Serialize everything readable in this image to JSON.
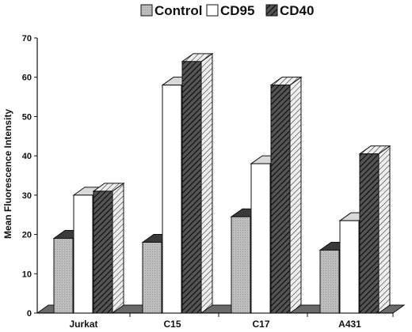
{
  "chart_data": {
    "type": "bar",
    "title": "",
    "xlabel": "",
    "ylabel": "Mean Fluorescence Intensity",
    "categories": [
      "Jurkat",
      "C15",
      "C17",
      "A431"
    ],
    "series": [
      {
        "name": "Control",
        "values": [
          19,
          18,
          24.5,
          16
        ],
        "color": "#b8b8b8"
      },
      {
        "name": "CD95",
        "values": [
          30,
          58,
          38,
          23.5
        ],
        "color": "#ffffff"
      },
      {
        "name": "CD40",
        "values": [
          31,
          64,
          58,
          40.5
        ],
        "color": "#444444"
      }
    ],
    "yticks": [
      0,
      10,
      20,
      30,
      40,
      50,
      60,
      70
    ],
    "ylim": [
      0,
      70
    ],
    "grid": false,
    "legend_position": "top-right",
    "style": "3d-bar"
  }
}
